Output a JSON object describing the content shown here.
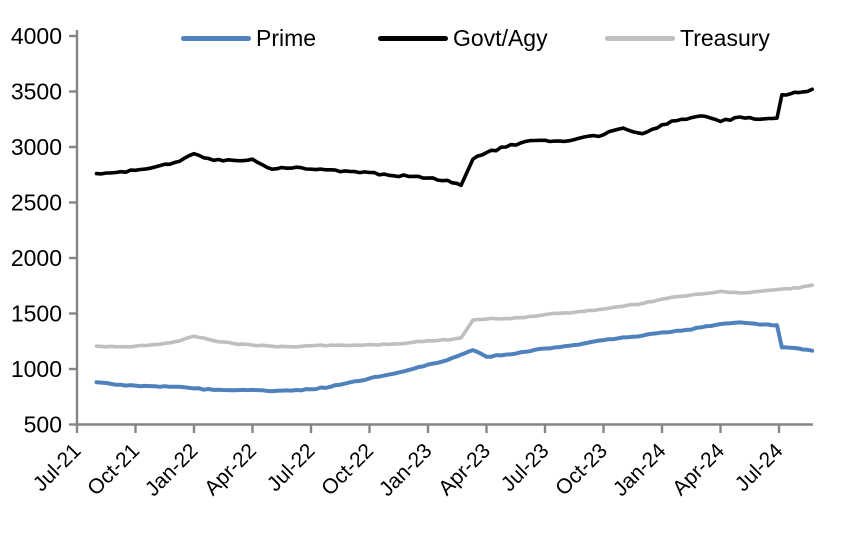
{
  "legend": [
    {
      "label": "Prime",
      "color": "#4f81bd"
    },
    {
      "label": "Govt/Agy",
      "color": "#000000"
    },
    {
      "label": "Treasury",
      "color": "#bfbfbf"
    }
  ],
  "y_axis": {
    "tick_labels": [
      "4000",
      "3500",
      "3000",
      "2500",
      "2000",
      "1500",
      "1000",
      "500"
    ],
    "min": 500,
    "max": 4000
  },
  "x_axis": {
    "tick_labels": [
      "Jul-21",
      "Oct-21",
      "Jan-22",
      "Apr-22",
      "Jul-22",
      "Oct-22",
      "Jan-23",
      "Apr-23",
      "Jul-23",
      "Oct-23",
      "Jan-24",
      "Apr-24",
      "Jul-24"
    ]
  },
  "colors": {
    "axis": "#858585",
    "text": "#000000",
    "background": "#ffffff"
  },
  "chart_data": {
    "type": "line",
    "title": "",
    "xlabel": "",
    "ylabel": "",
    "ylim": [
      500,
      4000
    ],
    "grid": false,
    "legend_position": "top",
    "x_unit": "months since Jul-2021 (weekly series shown; key observations listed)",
    "x": [
      1,
      2,
      3,
      4,
      5,
      6,
      7,
      8,
      9,
      10,
      11,
      12,
      13,
      14,
      15,
      16,
      17,
      18,
      19,
      19.7,
      20.3,
      21,
      22,
      23,
      24,
      25,
      26,
      27,
      28,
      29,
      30,
      31,
      32,
      33,
      34,
      35,
      35.9,
      36.15,
      37,
      37.7
    ],
    "series": [
      {
        "name": "Prime",
        "color": "#4f81bd",
        "values": [
          880,
          858,
          850,
          845,
          840,
          825,
          812,
          808,
          812,
          800,
          805,
          818,
          840,
          880,
          915,
          950,
          990,
          1040,
          1080,
          1130,
          1170,
          1110,
          1130,
          1155,
          1185,
          1205,
          1230,
          1260,
          1285,
          1300,
          1330,
          1345,
          1375,
          1405,
          1420,
          1400,
          1395,
          1195,
          1185,
          1165
        ]
      },
      {
        "name": "Govt/Agy",
        "color": "#000000",
        "values": [
          2760,
          2770,
          2790,
          2820,
          2860,
          2940,
          2880,
          2880,
          2890,
          2800,
          2810,
          2800,
          2795,
          2780,
          2770,
          2745,
          2735,
          2720,
          2700,
          2655,
          2890,
          2950,
          3000,
          3050,
          3060,
          3050,
          3090,
          3110,
          3170,
          3120,
          3200,
          3250,
          3280,
          3230,
          3270,
          3250,
          3260,
          3470,
          3490,
          3520
        ]
      },
      {
        "name": "Treasury",
        "color": "#bfbfbf",
        "values": [
          1205,
          1200,
          1205,
          1220,
          1245,
          1295,
          1255,
          1230,
          1215,
          1205,
          1200,
          1210,
          1215,
          1212,
          1220,
          1222,
          1235,
          1255,
          1262,
          1280,
          1440,
          1450,
          1455,
          1465,
          1490,
          1505,
          1520,
          1540,
          1565,
          1590,
          1630,
          1655,
          1675,
          1700,
          1685,
          1700,
          1715,
          1720,
          1730,
          1755
        ]
      }
    ]
  }
}
